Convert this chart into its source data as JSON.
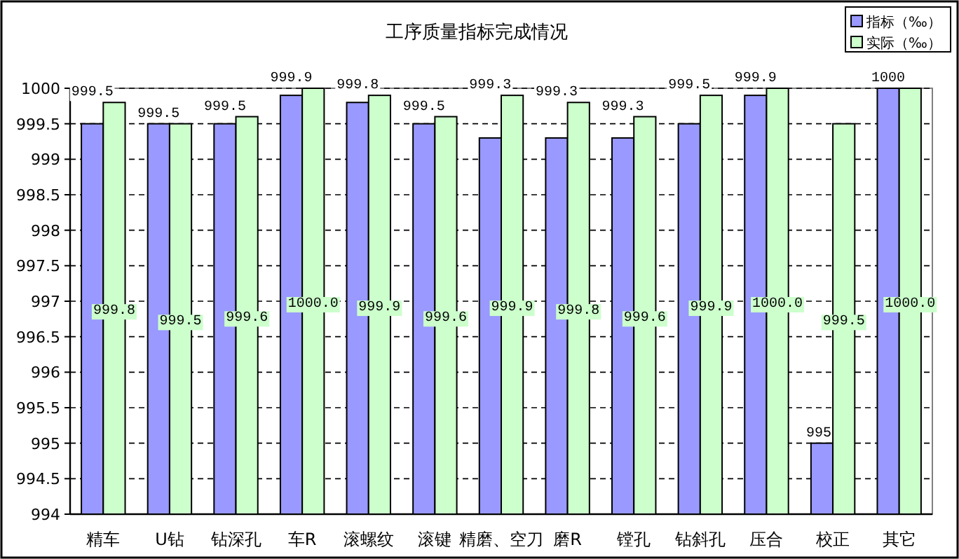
{
  "chart_data": {
    "type": "bar",
    "title": "工序质量指标完成情况",
    "categories": [
      "精车",
      "U钻",
      "钻深孔",
      "车R",
      "滚螺纹",
      "滚键",
      "精磨、空刀",
      "磨R",
      "镗孔",
      "钻斜孔",
      "压合",
      "校正",
      "其它"
    ],
    "series": [
      {
        "name": "指标（‰）",
        "color": "#9999ff",
        "values": [
          999.5,
          999.5,
          999.5,
          999.9,
          999.8,
          999.5,
          999.3,
          999.3,
          999.3,
          999.5,
          999.9,
          995,
          1000
        ],
        "value_labels": [
          "999.5",
          "999.5",
          "999.5",
          "999.9",
          "999.8",
          "999.5",
          "999.3",
          "999.3",
          "999.3",
          "999.5",
          "999.9",
          "995",
          "1000"
        ]
      },
      {
        "name": "实际（‰）",
        "color": "#ccffcc",
        "values": [
          999.8,
          999.5,
          999.6,
          1000,
          999.9,
          999.6,
          999.9,
          999.8,
          999.6,
          999.9,
          1000,
          999.5,
          1000
        ],
        "value_labels": [
          "999.8",
          "999.5",
          "999.6",
          "1000.0",
          "999.9",
          "999.6",
          "999.9",
          "999.8",
          "999.6",
          "999.9",
          "1000.0",
          "999.5",
          "1000.0"
        ]
      }
    ],
    "ylim": [
      994,
      1000
    ],
    "yticks": [
      994,
      994.5,
      995,
      995.5,
      996,
      996.5,
      997,
      997.5,
      998,
      998.5,
      999,
      999.5,
      1000
    ],
    "grid": "y",
    "legend": "top right"
  }
}
